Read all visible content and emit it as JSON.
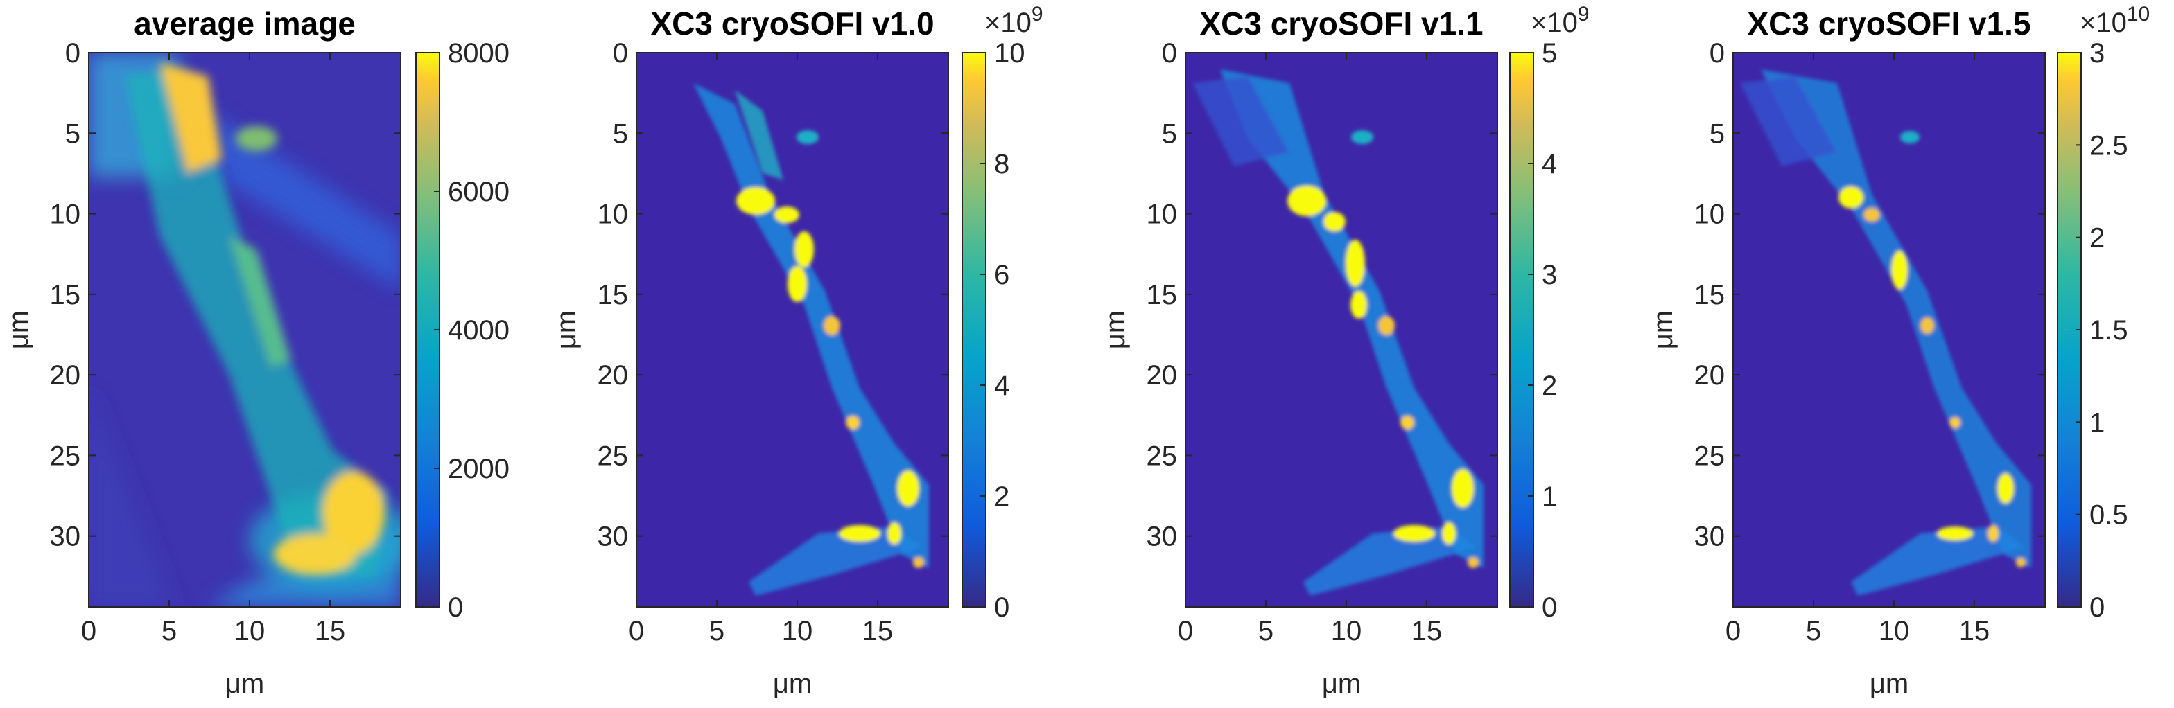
{
  "chart_data": [
    {
      "type": "heatmap",
      "title": "average image",
      "xlabel": "μm",
      "ylabel": "μm",
      "xlim": [
        0,
        19.4
      ],
      "ylim": [
        34.4,
        0
      ],
      "x_ticks": [
        "0",
        "5",
        "10",
        "15"
      ],
      "y_ticks": [
        "0",
        "5",
        "10",
        "15",
        "20",
        "25",
        "30"
      ],
      "colorbar": {
        "min": 0,
        "max": 8000,
        "ticks": [
          "0",
          "2000",
          "4000",
          "6000",
          "8000"
        ],
        "exponent": ""
      },
      "colormap": "parula"
    },
    {
      "type": "heatmap",
      "title": "XC3 cryoSOFI v1.0",
      "xlabel": "μm",
      "ylabel": "μm",
      "xlim": [
        0,
        19.4
      ],
      "ylim": [
        34.4,
        0
      ],
      "x_ticks": [
        "0",
        "5",
        "10",
        "15"
      ],
      "y_ticks": [
        "0",
        "5",
        "10",
        "15",
        "20",
        "25",
        "30"
      ],
      "colorbar": {
        "min": 0,
        "max": 10,
        "ticks": [
          "0",
          "2",
          "4",
          "6",
          "8",
          "10"
        ],
        "exponent": "9"
      },
      "colormap": "parula"
    },
    {
      "type": "heatmap",
      "title": "XC3 cryoSOFI v1.1",
      "xlabel": "μm",
      "ylabel": "μm",
      "xlim": [
        0,
        19.4
      ],
      "ylim": [
        34.4,
        0
      ],
      "x_ticks": [
        "0",
        "5",
        "10",
        "15"
      ],
      "y_ticks": [
        "0",
        "5",
        "10",
        "15",
        "20",
        "25",
        "30"
      ],
      "colorbar": {
        "min": 0,
        "max": 5,
        "ticks": [
          "0",
          "1",
          "2",
          "3",
          "4",
          "5"
        ],
        "exponent": "9"
      },
      "colormap": "parula"
    },
    {
      "type": "heatmap",
      "title": "XC3 cryoSOFI v1.5",
      "xlabel": "μm",
      "ylabel": "μm",
      "xlim": [
        0,
        19.4
      ],
      "ylim": [
        34.4,
        0
      ],
      "x_ticks": [
        "0",
        "5",
        "10",
        "15"
      ],
      "y_ticks": [
        "0",
        "5",
        "10",
        "15",
        "20",
        "25",
        "30"
      ],
      "colorbar": {
        "min": 0,
        "max": 3,
        "ticks": [
          "0",
          "0.5",
          "1",
          "1.5",
          "2",
          "2.5",
          "3"
        ],
        "exponent": "10"
      },
      "colormap": "parula"
    }
  ],
  "colors": {
    "background": "#3e26a8",
    "parula_low": "#352a87",
    "parula_mid": "#16b3c1",
    "parula_high": "#f9fb0e",
    "axis": "#262626"
  }
}
